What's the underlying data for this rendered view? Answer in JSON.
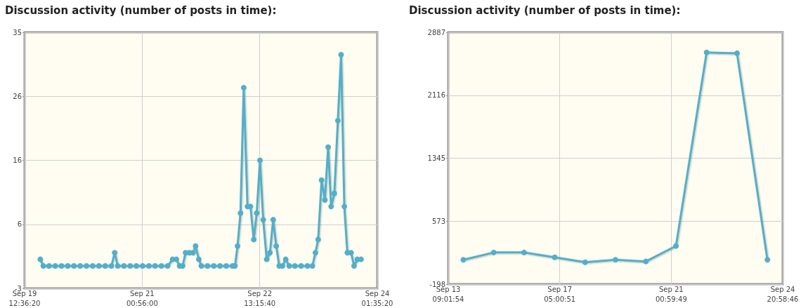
{
  "chart_data": [
    {
      "type": "line",
      "title": "Discussion activity (number of posts in time):",
      "color": "#52afc7",
      "marker": "circle",
      "grid": true,
      "xlim": [
        "--09-19T12:36:20",
        "--09-24T01:35:20"
      ],
      "xticks": [
        {
          "value": "--09-19T12:36:20",
          "label": "Sep 19\n12:36:20"
        },
        {
          "value": "--09-21T00:56:00",
          "label": "Sep 21\n00:56:00"
        },
        {
          "value": "--09-22T13:15:40",
          "label": "Sep 22\n13:15:40"
        },
        {
          "value": "--09-24T01:35:20",
          "label": "Sep 24\n01:35:20"
        }
      ],
      "ylim": [
        -3.4,
        35.4
      ],
      "yticks": [
        {
          "value": -3.4,
          "label": "-3"
        },
        {
          "value": 6.3,
          "label": "6"
        },
        {
          "value": 16,
          "label": "16"
        },
        {
          "value": 25.7,
          "label": "26"
        },
        {
          "value": 35.4,
          "label": "35"
        }
      ],
      "x": [
        "--09-19T17:28",
        "--09-19T18:23",
        "--09-19T20:10",
        "--09-19T22:05",
        "--09-20T00:01",
        "--09-20T01:57",
        "--09-20T03:52",
        "--09-20T05:48",
        "--09-20T07:44",
        "--09-20T09:39",
        "--09-20T11:35",
        "--09-20T13:31",
        "--09-20T15:27",
        "--09-20T16:27",
        "--09-20T17:22",
        "--09-20T19:18",
        "--09-20T21:14",
        "--09-20T23:09",
        "--09-21T01:05",
        "--09-21T03:01",
        "--09-21T04:56",
        "--09-21T06:52",
        "--09-21T08:48",
        "--09-21T10:20",
        "--09-21T11:30",
        "--09-21T12:30",
        "--09-21T13:26",
        "--09-21T14:21",
        "--09-21T15:35",
        "--09-21T16:40",
        "--09-21T17:26",
        "--09-21T18:26",
        "--09-21T19:13",
        "--09-21T21:08",
        "--09-21T23:04",
        "--09-22T01:00",
        "--09-22T02:55",
        "--09-22T04:51",
        "--09-22T05:37",
        "--09-22T06:24",
        "--09-22T07:19",
        "--09-22T08:19",
        "--09-22T09:29",
        "--09-22T10:24",
        "--09-22T11:25",
        "--09-22T12:20",
        "--09-22T13:20",
        "--09-22T14:20",
        "--09-22T15:25",
        "--09-22T16:25",
        "--09-22T17:25",
        "--09-22T18:21",
        "--09-22T19:17",
        "--09-22T20:17",
        "--09-22T21:17",
        "--09-22T22:22",
        "--09-23T00:08",
        "--09-23T02:04",
        "--09-23T04:00",
        "--09-23T05:32",
        "--09-23T06:28",
        "--09-23T07:19",
        "--09-23T08:23",
        "--09-23T09:23",
        "--09-23T10:24",
        "--09-23T11:19",
        "--09-23T12:19",
        "--09-23T13:24",
        "--09-23T14:24",
        "--09-23T15:24",
        "--09-23T16:20",
        "--09-23T17:29",
        "--09-23T18:25",
        "--09-23T19:25",
        "--09-23T20:34"
      ],
      "values": [
        1,
        0,
        0,
        0,
        0,
        0,
        0,
        0,
        0,
        0,
        0,
        0,
        0,
        2,
        0,
        0,
        0,
        0,
        0,
        0,
        0,
        0,
        0,
        1,
        1,
        0,
        0,
        2,
        2,
        2,
        3,
        1,
        0,
        0,
        0,
        0,
        0,
        0,
        0,
        3,
        8,
        27,
        9,
        9,
        4,
        8,
        16,
        7,
        1,
        2,
        7,
        3,
        0,
        0,
        1,
        0,
        0,
        0,
        0,
        0,
        2,
        4,
        13,
        10,
        18,
        9,
        11,
        22,
        32,
        9,
        2,
        2,
        0,
        1,
        1
      ]
    },
    {
      "type": "line",
      "title": "Discussion activity (number of posts in time):",
      "color": "#52afc7",
      "marker": "circle",
      "grid": true,
      "xlim": [
        "--09-13T09:01:54",
        "--09-24T20:58:46"
      ],
      "xticks": [
        {
          "value": "--09-13T09:01:54",
          "label": "Sep 13\n09:01:54"
        },
        {
          "value": "--09-17T05:00:51",
          "label": "Sep 17\n05:00:51"
        },
        {
          "value": "--09-21T00:59:49",
          "label": "Sep 21\n00:59:49"
        },
        {
          "value": "--09-24T20:58:46",
          "label": "Sep 24\n20:58:46"
        }
      ],
      "ylim": [
        -198,
        2887
      ],
      "yticks": [
        {
          "value": -198,
          "label": "-198"
        },
        {
          "value": 573.25,
          "label": "573"
        },
        {
          "value": 1344.5,
          "label": "1345"
        },
        {
          "value": 2115.75,
          "label": "2116"
        },
        {
          "value": 2887,
          "label": "2887"
        }
      ],
      "x": [
        "--09-13T21:28",
        "--09-14T22:32",
        "--09-15T23:36",
        "--09-17T00:52",
        "--09-18T01:56",
        "--09-19T03:00",
        "--09-20T04:04",
        "--09-21T04:56",
        "--09-22T06:12",
        "--09-23T07:17",
        "--09-24T08:21"
      ],
      "values": [
        100,
        190,
        190,
        130,
        70,
        100,
        80,
        270,
        2640,
        2630,
        100
      ]
    }
  ]
}
